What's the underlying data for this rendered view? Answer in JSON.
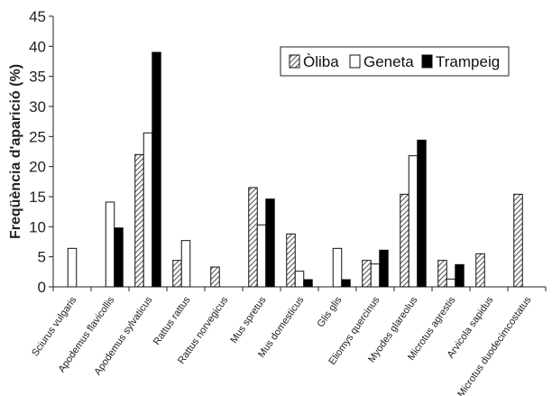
{
  "chart_data": {
    "type": "bar",
    "title": "",
    "xlabel": "",
    "ylabel": "Freqüència d'aparició (%)",
    "ylim": [
      0,
      45
    ],
    "yticks": [
      0,
      5,
      10,
      15,
      20,
      25,
      30,
      35,
      40,
      45
    ],
    "grid": false,
    "legend_position": "top-right",
    "categories": [
      "Sciurus vulgaris",
      "Apodemus flavicollis",
      "Apodemus sylvaticus",
      "Rattus rattus",
      "Rattus norvegicus",
      "Mus spretus",
      "Mus domesticus",
      "Glis glis",
      "Eliomys quercinus",
      "Myodes glareolus",
      "Microtus agrestis",
      "Arvicola sapidus",
      "Microtus duodecimcostatus"
    ],
    "series": [
      {
        "name": "Òliba",
        "pattern": "hatched",
        "color": "#ffffff",
        "values": [
          0,
          0,
          22.0,
          4.4,
          3.3,
          16.5,
          8.8,
          0,
          4.4,
          15.4,
          4.4,
          5.5,
          15.4
        ]
      },
      {
        "name": "Geneta",
        "pattern": "hollow",
        "color": "#ffffff",
        "values": [
          6.4,
          14.1,
          25.6,
          7.7,
          0,
          10.3,
          2.6,
          6.4,
          3.8,
          21.8,
          1.3,
          0,
          0
        ]
      },
      {
        "name": "Trampeig",
        "pattern": "solid",
        "color": "#000000",
        "values": [
          0,
          9.8,
          39.0,
          0,
          0,
          14.6,
          1.2,
          1.2,
          6.1,
          24.4,
          3.7,
          0,
          0
        ]
      }
    ]
  }
}
